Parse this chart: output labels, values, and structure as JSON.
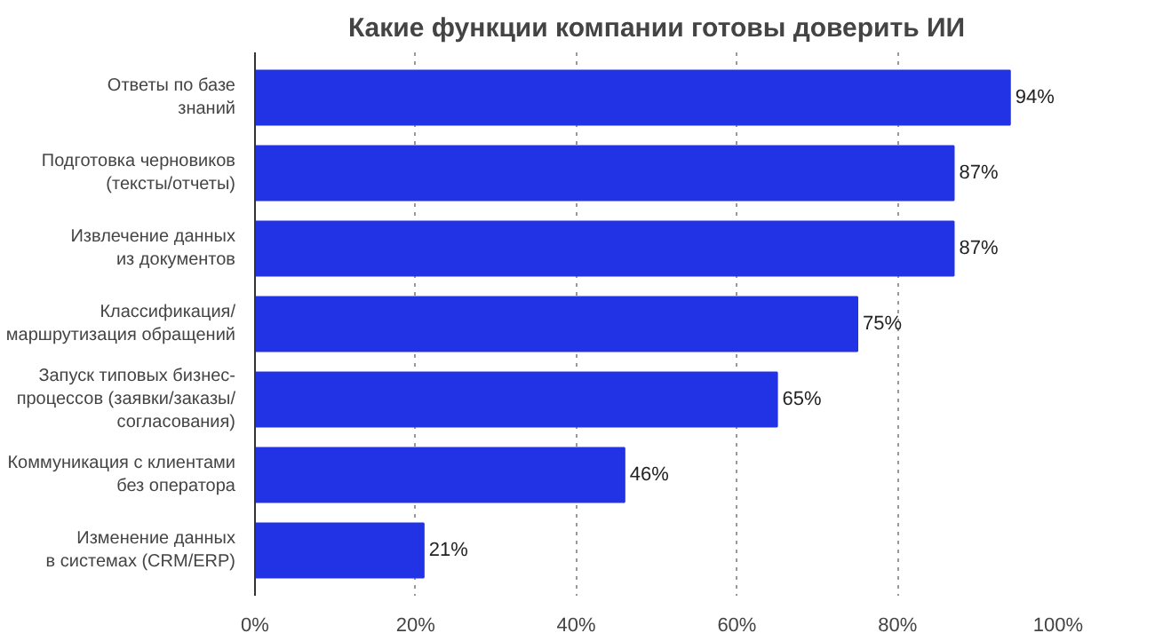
{
  "chart_data": {
    "type": "bar",
    "orientation": "horizontal",
    "title": "Какие функции компании готовы доверить ИИ",
    "categories": [
      "Ответы по базе\nзнаний",
      "Подготовка черновиков\n(тексты/отчеты)",
      "Извлечение данных\nиз документов",
      "Классификация/\nмаршрутизация обращений",
      "Запуск типовых бизнес-\nпроцессов (заявки/заказы/\nсогласования)",
      "Коммуникация с клиентами\nбез оператора",
      "Изменение данных\nв системах (CRM/ERP)"
    ],
    "values": [
      94,
      87,
      87,
      75,
      65,
      46,
      21
    ],
    "value_labels": [
      "94%",
      "87%",
      "87%",
      "75%",
      "65%",
      "46%",
      "21%"
    ],
    "color": "#2233e6",
    "xlim": [
      0,
      100
    ],
    "xticks": [
      {
        "value": 0,
        "label": "0%"
      },
      {
        "value": 20,
        "label": "20%"
      },
      {
        "value": 40,
        "label": "40%"
      },
      {
        "value": 60,
        "label": "60%"
      },
      {
        "value": 80,
        "label": "80%"
      },
      {
        "value": 100,
        "label": "100%"
      }
    ],
    "grid": "x"
  }
}
